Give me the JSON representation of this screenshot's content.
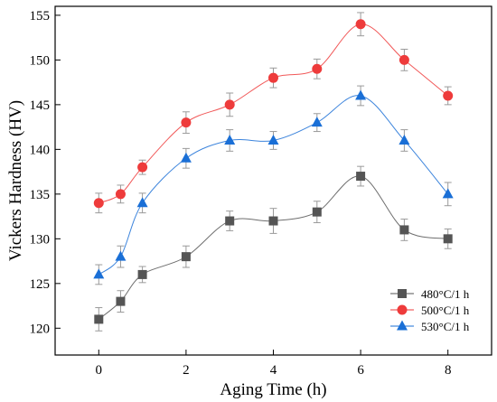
{
  "chart_data": {
    "type": "line",
    "xlabel": "Aging Time (h)",
    "ylabel": "Vickers Hardness (HV)",
    "xlim": [
      -1,
      9
    ],
    "ylim": [
      117,
      156
    ],
    "xticks": [
      0,
      2,
      4,
      6,
      8
    ],
    "yticks": [
      120,
      125,
      130,
      135,
      140,
      145,
      150,
      155
    ],
    "grid": false,
    "legend_position": "bottom-right",
    "series": [
      {
        "name": "480°C/1 h",
        "color": "#555555",
        "marker": "square",
        "x": [
          0,
          0.5,
          1,
          2,
          3,
          4,
          5,
          6,
          7,
          8
        ],
        "y": [
          121,
          123,
          126,
          128,
          132,
          132,
          133,
          137,
          131,
          130
        ],
        "err": [
          1.3,
          1.2,
          0.9,
          1.2,
          1.1,
          1.4,
          1.2,
          1.1,
          1.2,
          1.1
        ]
      },
      {
        "name": "500°C/1 h",
        "color": "#ee3b3b",
        "marker": "circle",
        "x": [
          0,
          0.5,
          1,
          2,
          3,
          4,
          5,
          6,
          7,
          8
        ],
        "y": [
          134,
          135,
          138,
          143,
          145,
          148,
          149,
          154,
          150,
          146
        ],
        "err": [
          1.1,
          1.0,
          0.8,
          1.2,
          1.3,
          1.1,
          1.1,
          1.3,
          1.2,
          1.0
        ]
      },
      {
        "name": "530°C/1 h",
        "color": "#1a6fd6",
        "marker": "triangle",
        "x": [
          0,
          0.5,
          1,
          2,
          3,
          4,
          5,
          6,
          7,
          8
        ],
        "y": [
          126,
          128,
          134,
          139,
          141,
          141,
          143,
          146,
          141,
          135
        ],
        "err": [
          1.1,
          1.2,
          1.1,
          1.1,
          1.2,
          1.0,
          1.0,
          1.1,
          1.2,
          1.3
        ]
      }
    ]
  }
}
